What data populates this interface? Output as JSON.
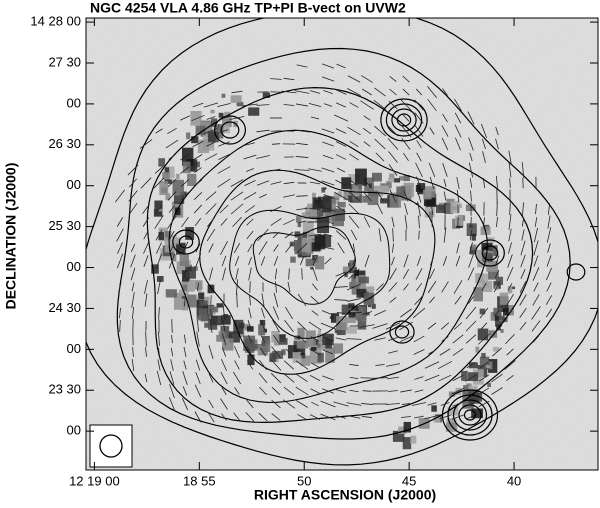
{
  "chart_data": {
    "type": "image",
    "title": "NGC 4254 VLA 4.86 GHz TP+PI B-vect on UVW2",
    "xlabel": "RIGHT ASCENSION (J2000)",
    "ylabel": "DECLINATION (J2000)",
    "xlim": [
      44340.4,
      44316.0
    ],
    "ylim": [
      51751.5,
      52083
    ],
    "xticks": [
      {
        "value": 44340,
        "label": "12 19 00"
      },
      {
        "value": 44335,
        "label": "18 55"
      },
      {
        "value": 44330,
        "label": "50"
      },
      {
        "value": 44325,
        "label": "45"
      },
      {
        "value": 44320,
        "label": "40"
      }
    ],
    "yticks": [
      {
        "value": 52080,
        "label": "14 28 00"
      },
      {
        "value": 52050,
        "label": "27 30"
      },
      {
        "value": 52020,
        "label": "00"
      },
      {
        "value": 51990,
        "label": "26 30"
      },
      {
        "value": 51960,
        "label": "00"
      },
      {
        "value": 51930,
        "label": "25 30"
      },
      {
        "value": 51900,
        "label": "00"
      },
      {
        "value": 51870,
        "label": "24 30"
      },
      {
        "value": 51840,
        "label": "00"
      },
      {
        "value": 51810,
        "label": "23 30"
      },
      {
        "value": 51780,
        "label": "00"
      }
    ]
  }
}
